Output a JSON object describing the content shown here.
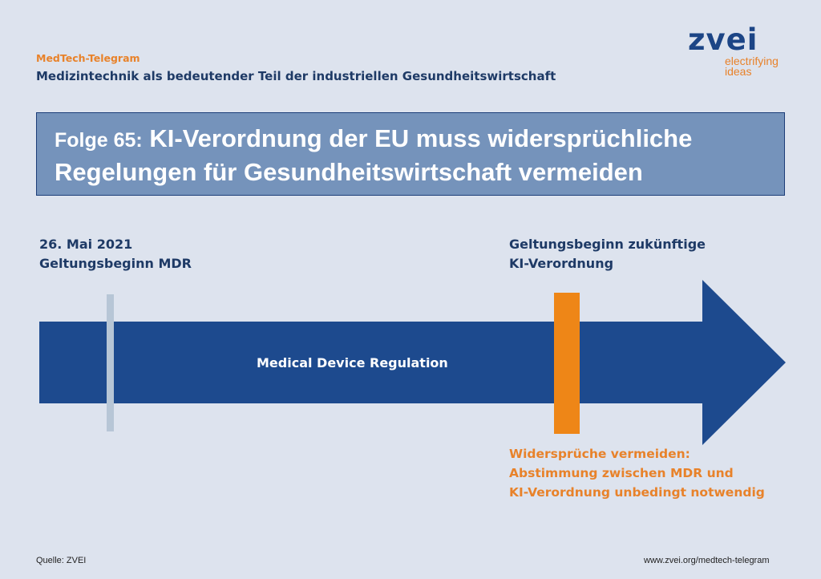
{
  "header": {
    "kicker": "MedTech-Telegram",
    "subtitle": "Medizintechnik als bedeutender Teil der industriellen Gesundheitswirtschaft"
  },
  "logo": {
    "wordmark": "zvei",
    "tagline_1": "electrifying",
    "tagline_2": "ideas"
  },
  "title": {
    "prefix": "Folge 65:",
    "line_1": "KI-Verordnung der EU muss widersprüchliche",
    "line_2": "Regelungen für Gesundheitswirtschaft vermeiden"
  },
  "timeline": {
    "arrow_label": "Medical Device Regulation",
    "marker_1": {
      "line_1": "26. Mai 2021",
      "line_2": "Geltungsbeginn MDR"
    },
    "marker_2": {
      "line_1": "Geltungsbeginn zukünftige",
      "line_2": "KI-Verordnung"
    },
    "note": {
      "line_1": "Widersprüche vermeiden:",
      "line_2": "Abstimmung zwischen MDR und",
      "line_3": "KI-Verordnung unbedingt notwendig"
    }
  },
  "footer": {
    "source": "Quelle: ZVEI",
    "url": "www.zvei.org/medtech-telegram"
  },
  "colors": {
    "background": "#dde3ee",
    "arrow": "#1d4a8e",
    "title_box": "#7593bb",
    "accent_orange": "#ee8617",
    "marker_light": "#b7c6d6",
    "text_dark": "#1e3a66"
  }
}
